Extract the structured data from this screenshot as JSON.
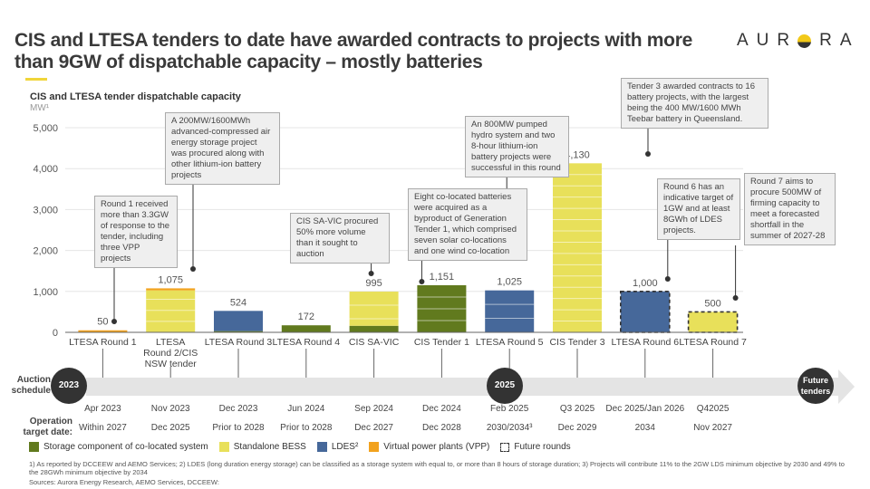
{
  "header": {
    "title": "CIS and LTESA tenders to date have awarded contracts to projects with more than 9GW of dispatchable capacity – mostly batteries",
    "logo_text_left": "AUR",
    "logo_text_right": "RA",
    "accent_color": "#f0d53a"
  },
  "chart_data": {
    "type": "bar",
    "title": "CIS and LTESA tender dispatchable capacity",
    "ylabel": "MW¹",
    "xlabel": "",
    "ylim": [
      0,
      5000
    ],
    "yticks": [
      0,
      1000,
      2000,
      3000,
      4000,
      5000
    ],
    "ytick_labels": [
      "0",
      "1,000",
      "2,000",
      "3,000",
      "4,000",
      "5,000"
    ],
    "grid": true,
    "categories": [
      "LTESA Round 1",
      "LTESA Round 2/CIS NSW tender",
      "LTESA Round 3",
      "LTESA Round 4",
      "CIS SA-VIC",
      "CIS Tender 1",
      "LTESA Round 5",
      "CIS Tender 3",
      "LTESA Round 6",
      "LTESA Round 7"
    ],
    "category_lines": [
      [
        "LTESA Round 1"
      ],
      [
        "LTESA",
        "Round 2/CIS",
        "NSW tender"
      ],
      [
        "LTESA Round 3"
      ],
      [
        "LTESA Round 4"
      ],
      [
        "CIS SA-VIC"
      ],
      [
        "CIS Tender 1"
      ],
      [
        "LTESA Round 5"
      ],
      [
        "CIS Tender 3"
      ],
      [
        "LTESA Round 6"
      ],
      [
        "LTESA Round 7"
      ]
    ],
    "totals": [
      50,
      1075,
      524,
      172,
      995,
      1151,
      1025,
      4130,
      1000,
      500
    ],
    "total_labels": [
      "50",
      "1,075",
      "524",
      "172",
      "995",
      "1,151",
      "1,025",
      "4,130",
      "1,000",
      "500"
    ],
    "future_round": [
      false,
      false,
      false,
      false,
      false,
      false,
      false,
      false,
      true,
      true
    ],
    "series": [
      {
        "name": "Storage component of co-located system",
        "color": "#617a1e",
        "values": [
          0,
          0,
          30,
          172,
          160,
          1151,
          0,
          0,
          0,
          0
        ]
      },
      {
        "name": "Standalone BESS",
        "color": "#e8e05a",
        "values": [
          0,
          1025,
          0,
          0,
          835,
          0,
          0,
          4130,
          0,
          500
        ]
      },
      {
        "name": "LDES²",
        "color": "#46689a",
        "values": [
          0,
          0,
          494,
          0,
          0,
          0,
          1025,
          0,
          1000,
          0
        ]
      },
      {
        "name": "Virtual power plants (VPP)",
        "color": "#f2a21e",
        "values": [
          50,
          50,
          0,
          0,
          0,
          0,
          0,
          0,
          0,
          0
        ]
      }
    ],
    "legend": {
      "placement": "bottom",
      "future_label": "Future rounds"
    },
    "annotations": [
      {
        "bar": 0,
        "text": "Round 1 received more than 3.3GW of response to the tender, including three VPP projects"
      },
      {
        "bar": 1,
        "text": "A 200MW/1600MWh advanced-compressed air energy storage project was procured along with other lithium-ion battery projects"
      },
      {
        "bar": 4,
        "text": "CIS SA-VIC procured 50% more volume than it sought to auction"
      },
      {
        "bar": 5,
        "text": "Eight co-located batteries were acquired as a byproduct of Generation Tender 1, which comprised seven solar co-locations and one wind co-location"
      },
      {
        "bar": 6,
        "text": "An 800MW pumped hydro system and two 8-hour lithium-ion battery projects were successful in this round"
      },
      {
        "bar": 7,
        "text": "Tender 3 awarded contracts to 16 battery projects, with the largest being the 400 MW/1600 MWh Teebar battery in Queensland."
      },
      {
        "bar": 8,
        "text": "Round 6 has an indicative target of 1GW and at least 8GWh of LDES projects."
      },
      {
        "bar": 9,
        "text": "Round 7 aims to procure 500MW of firming capacity to meet a forecasted shortfall in the summer of 2027-28"
      }
    ]
  },
  "timeline": {
    "auction_label": "Auction schedule",
    "operation_label": "Operation target date:",
    "year_markers": [
      "2023",
      "2025",
      "Future tenders"
    ],
    "auction_dates": [
      "Apr 2023",
      "Nov 2023",
      "Dec 2023",
      "Jun 2024",
      "Sep 2024",
      "Dec 2024",
      "Feb 2025",
      "Q3 2025",
      "Dec 2025/Jan 2026",
      "Q42025"
    ],
    "operation_dates": [
      "Within 2027",
      "Dec 2025",
      "Prior to 2028",
      "Prior to 2028",
      "Dec 2027",
      "Dec 2028",
      "2030/2034³",
      "Dec 2029",
      "2034",
      "Nov 2027"
    ]
  },
  "footnotes": {
    "text": "1) As reported by DCCEEW and AEMO Services; 2) LDES (long duration energy storage) can be classified as a storage system with equal to, or more than 8 hours of storage duration; 3) Projects will contribute 11% to the 2GW LDS minimum objective by 2030 and 49% to the 28GWh minimum objective by 2034",
    "sources": "Sources: Aurora Energy Research, AEMO Services, DCCEEW:"
  }
}
